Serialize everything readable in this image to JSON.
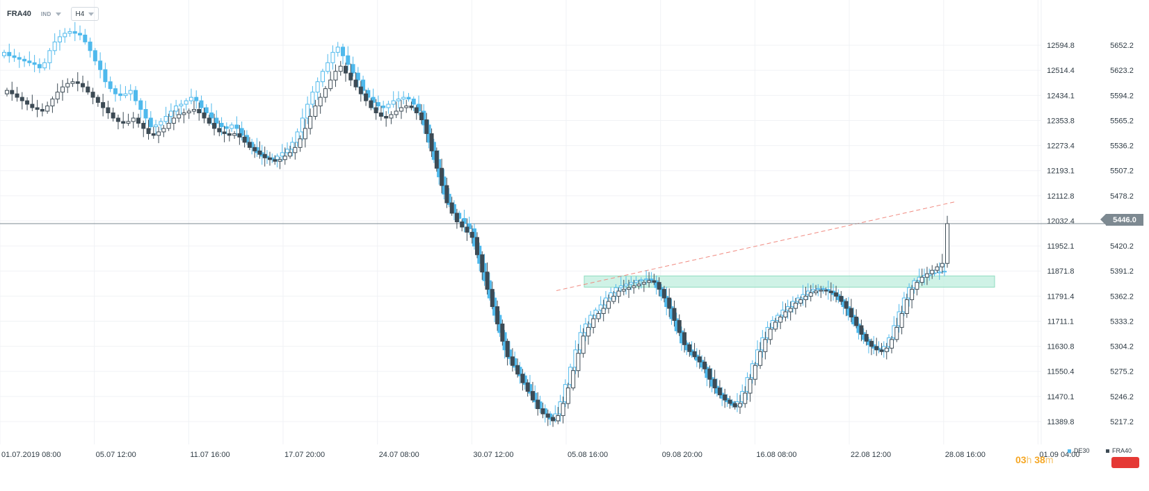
{
  "header": {
    "symbol": "FRA40",
    "indicators_label": "IND",
    "timeframe": "H4"
  },
  "price_badge": "5446.0",
  "timer": {
    "hours": "03",
    "hours_unit": "h",
    "minutes": "38",
    "minutes_unit": "m"
  },
  "legend": [
    {
      "name": "DE30",
      "color": "#4fb9ec"
    },
    {
      "name": "FRA40",
      "color": "#3d4b55"
    }
  ],
  "chart_data": {
    "type": "candlestick",
    "x_ticks": [
      "01.07.2019 08:00",
      "05.07 12:00",
      "11.07 16:00",
      "17.07 20:00",
      "24.07 08:00",
      "30.07 12:00",
      "05.08 16:00",
      "09.08 20:00",
      "16.08 08:00",
      "22.08 12:00",
      "28.08 16:00",
      "01.09 04:00"
    ],
    "y_axis_de30": [
      "12594.8",
      "12514.4",
      "12434.1",
      "12353.8",
      "12273.4",
      "12193.1",
      "12112.8",
      "12032.4",
      "11952.1",
      "11871.8",
      "11791.4",
      "11711.1",
      "11630.8",
      "11550.4",
      "11470.1",
      "11389.8"
    ],
    "y_axis_fra40": [
      "5652.2",
      "5623.2",
      "5594.2",
      "5565.2",
      "5536.2",
      "5507.2",
      "5478.2",
      "5449.2",
      "5420.2",
      "5391.2",
      "5362.2",
      "5333.2",
      "5304.2",
      "5275.2",
      "5246.2",
      "5217.2"
    ],
    "y_range_fra40": [
      5202.7,
      5680.4
    ],
    "current_price_fra40": 5446.0,
    "resistance_zone_fra40": [
      5372.5,
      5385.5
    ],
    "trendline_fra40": [
      [
        5368.5,
        5471.0
      ]
    ],
    "series": [
      {
        "name": "DE30",
        "color": "#4fb9ec",
        "close": [
          5644,
          5640,
          5638,
          5636,
          5634,
          5632,
          5630,
          5626,
          5632,
          5646,
          5656,
          5662,
          5666,
          5668,
          5666,
          5664,
          5656,
          5646,
          5634,
          5624,
          5610,
          5602,
          5596,
          5594,
          5596,
          5600,
          5588,
          5578,
          5568,
          5558,
          5560,
          5564,
          5570,
          5576,
          5582,
          5584,
          5588,
          5592,
          5588,
          5580,
          5574,
          5568,
          5562,
          5558,
          5556,
          5560,
          5556,
          5548,
          5540,
          5534,
          5528,
          5524,
          5522,
          5520,
          5524,
          5528,
          5532,
          5540,
          5552,
          5568,
          5584,
          5598,
          5610,
          5622,
          5632,
          5644,
          5650,
          5640,
          5630,
          5620,
          5612,
          5600,
          5592,
          5586,
          5582,
          5580,
          5584,
          5588,
          5590,
          5592,
          5590,
          5584,
          5576,
          5560,
          5540,
          5520,
          5500,
          5480,
          5468,
          5458,
          5452,
          5446,
          5440,
          5420,
          5400,
          5380,
          5360,
          5340,
          5320,
          5300,
          5290,
          5280,
          5270,
          5260,
          5250,
          5240,
          5232,
          5226,
          5220,
          5226,
          5240,
          5260,
          5280,
          5300,
          5320,
          5330,
          5340,
          5346,
          5352,
          5360,
          5366,
          5372,
          5374,
          5376,
          5378,
          5380,
          5381,
          5382,
          5380,
          5372,
          5362,
          5350,
          5336,
          5322,
          5308,
          5300,
          5294,
          5288,
          5280,
          5268,
          5258,
          5250,
          5244,
          5240,
          5236,
          5240,
          5252,
          5268,
          5284,
          5300,
          5314,
          5326,
          5334,
          5340,
          5346,
          5350,
          5356,
          5360,
          5364,
          5368,
          5370,
          5371,
          5370,
          5368,
          5364,
          5358,
          5350,
          5340,
          5330,
          5320,
          5312,
          5306,
          5302,
          5300,
          5304,
          5314,
          5328,
          5344,
          5360,
          5372,
          5380,
          5384,
          5386,
          5388,
          5389,
          5390,
          5391
        ]
      },
      {
        "name": "FRA40",
        "color": "#3d4b55",
        "close": [
          5600,
          5596,
          5592,
          5588,
          5584,
          5580,
          5578,
          5576,
          5582,
          5590,
          5598,
          5604,
          5608,
          5610,
          5608,
          5604,
          5598,
          5592,
          5586,
          5580,
          5574,
          5568,
          5564,
          5562,
          5564,
          5568,
          5562,
          5556,
          5550,
          5548,
          5552,
          5556,
          5562,
          5568,
          5572,
          5574,
          5576,
          5578,
          5574,
          5568,
          5562,
          5556,
          5552,
          5550,
          5548,
          5550,
          5546,
          5540,
          5534,
          5530,
          5526,
          5522,
          5520,
          5518,
          5520,
          5524,
          5528,
          5534,
          5544,
          5556,
          5570,
          5582,
          5592,
          5602,
          5612,
          5622,
          5628,
          5620,
          5612,
          5604,
          5596,
          5588,
          5580,
          5574,
          5570,
          5568,
          5572,
          5576,
          5580,
          5582,
          5580,
          5574,
          5566,
          5550,
          5530,
          5510,
          5490,
          5470,
          5458,
          5448,
          5442,
          5436,
          5430,
          5410,
          5390,
          5370,
          5350,
          5330,
          5310,
          5292,
          5282,
          5272,
          5262,
          5252,
          5242,
          5232,
          5226,
          5222,
          5218,
          5224,
          5238,
          5256,
          5276,
          5296,
          5316,
          5326,
          5336,
          5342,
          5348,
          5356,
          5362,
          5368,
          5370,
          5372,
          5374,
          5376,
          5378,
          5380,
          5378,
          5370,
          5360,
          5348,
          5334,
          5320,
          5306,
          5298,
          5292,
          5286,
          5278,
          5266,
          5256,
          5248,
          5242,
          5238,
          5234,
          5238,
          5250,
          5266,
          5282,
          5298,
          5312,
          5324,
          5332,
          5338,
          5344,
          5348,
          5354,
          5358,
          5362,
          5366,
          5368,
          5369,
          5368,
          5366,
          5362,
          5356,
          5348,
          5338,
          5328,
          5318,
          5310,
          5304,
          5300,
          5298,
          5302,
          5312,
          5326,
          5342,
          5358,
          5370,
          5378,
          5384,
          5388,
          5392,
          5396,
          5400,
          5446
        ]
      }
    ]
  }
}
